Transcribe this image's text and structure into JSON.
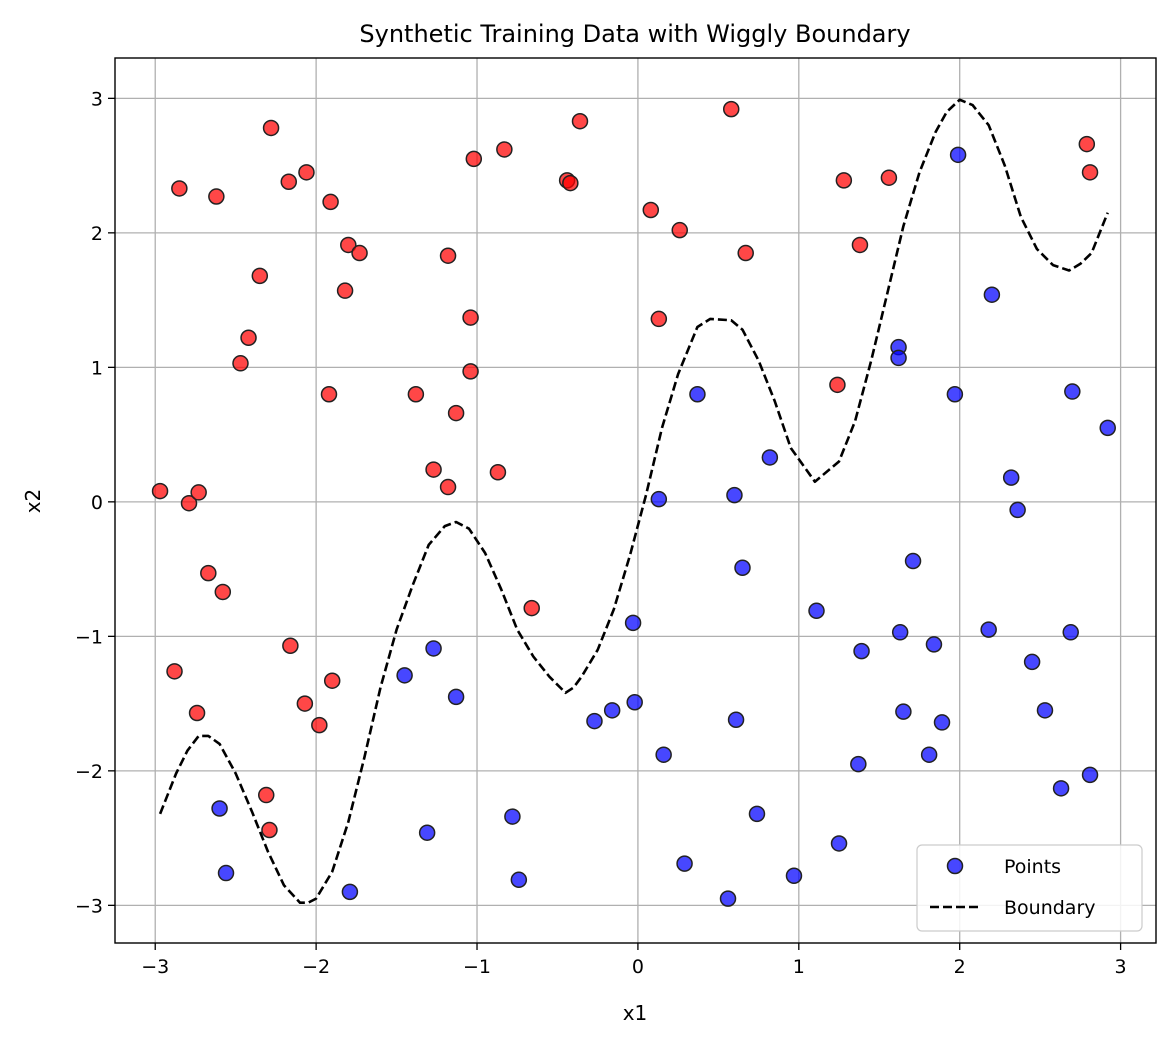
{
  "chart_data": {
    "type": "scatter",
    "title": "Synthetic Training Data with Wiggly Boundary",
    "xlabel": "x1",
    "ylabel": "x2",
    "xlim": [
      -3.25,
      3.22
    ],
    "ylim": [
      -3.28,
      3.3
    ],
    "xticks": [
      -3,
      -2,
      -1,
      0,
      1,
      2,
      3
    ],
    "yticks": [
      -3,
      -2,
      -1,
      0,
      1,
      2,
      3
    ],
    "xtick_labels": [
      "−3",
      "−2",
      "−1",
      "0",
      "1",
      "2",
      "3"
    ],
    "ytick_labels": [
      "−3",
      "−2",
      "−1",
      "0",
      "1",
      "2",
      "3"
    ],
    "grid": true,
    "legend_position": "lower-right",
    "legend": [
      {
        "label": "Points",
        "kind": "marker",
        "color": "#0000ff"
      },
      {
        "label": "Boundary",
        "kind": "dashed-line",
        "color": "#000000"
      }
    ],
    "colors": {
      "red": "#ff0000",
      "blue": "#0000ff",
      "boundary": "#000000",
      "edge": "#222222"
    },
    "series": [
      {
        "name": "Points",
        "type": "scatter",
        "points": [
          [
            -2.97,
            0.08,
            "red"
          ],
          [
            -2.85,
            2.33,
            "red"
          ],
          [
            -2.62,
            2.27,
            "red"
          ],
          [
            -2.28,
            2.78,
            "red"
          ],
          [
            -2.17,
            2.38,
            "red"
          ],
          [
            -2.06,
            2.45,
            "red"
          ],
          [
            -1.91,
            2.23,
            "red"
          ],
          [
            -1.8,
            1.91,
            "red"
          ],
          [
            -1.73,
            1.85,
            "red"
          ],
          [
            -1.82,
            1.57,
            "red"
          ],
          [
            -2.35,
            1.68,
            "red"
          ],
          [
            -2.42,
            1.22,
            "red"
          ],
          [
            -2.47,
            1.03,
            "red"
          ],
          [
            -1.92,
            0.8,
            "red"
          ],
          [
            -1.38,
            0.8,
            "red"
          ],
          [
            -1.27,
            0.24,
            "red"
          ],
          [
            -1.18,
            0.11,
            "red"
          ],
          [
            -1.13,
            0.66,
            "red"
          ],
          [
            -1.04,
            0.97,
            "red"
          ],
          [
            -1.04,
            1.37,
            "red"
          ],
          [
            -1.18,
            1.83,
            "red"
          ],
          [
            -1.02,
            2.55,
            "red"
          ],
          [
            -0.83,
            2.62,
            "red"
          ],
          [
            -0.44,
            2.39,
            "red"
          ],
          [
            -0.42,
            2.37,
            "red"
          ],
          [
            -0.36,
            2.83,
            "red"
          ],
          [
            -0.87,
            0.22,
            "red"
          ],
          [
            -0.66,
            -0.79,
            "red"
          ],
          [
            -2.79,
            -0.01,
            "red"
          ],
          [
            -2.73,
            0.07,
            "red"
          ],
          [
            -2.67,
            -0.53,
            "red"
          ],
          [
            -2.58,
            -0.67,
            "red"
          ],
          [
            -2.88,
            -1.26,
            "red"
          ],
          [
            -2.74,
            -1.57,
            "red"
          ],
          [
            -2.16,
            -1.07,
            "red"
          ],
          [
            -1.9,
            -1.33,
            "red"
          ],
          [
            -2.07,
            -1.5,
            "red"
          ],
          [
            -1.98,
            -1.66,
            "red"
          ],
          [
            -2.31,
            -2.18,
            "red"
          ],
          [
            -2.29,
            -2.44,
            "red"
          ],
          [
            0.08,
            2.17,
            "red"
          ],
          [
            0.26,
            2.02,
            "red"
          ],
          [
            0.58,
            2.92,
            "red"
          ],
          [
            0.67,
            1.85,
            "red"
          ],
          [
            0.13,
            1.36,
            "red"
          ],
          [
            1.28,
            2.39,
            "red"
          ],
          [
            1.38,
            1.91,
            "red"
          ],
          [
            1.56,
            2.41,
            "red"
          ],
          [
            1.24,
            0.87,
            "red"
          ],
          [
            2.79,
            2.66,
            "red"
          ],
          [
            2.81,
            2.45,
            "red"
          ],
          [
            1.99,
            2.58,
            "blue"
          ],
          [
            2.2,
            1.54,
            "blue"
          ],
          [
            1.62,
            1.15,
            "blue"
          ],
          [
            1.62,
            1.07,
            "blue"
          ],
          [
            1.97,
            0.8,
            "blue"
          ],
          [
            2.7,
            0.82,
            "blue"
          ],
          [
            2.92,
            0.55,
            "blue"
          ],
          [
            2.32,
            0.18,
            "blue"
          ],
          [
            2.36,
            -0.06,
            "blue"
          ],
          [
            1.71,
            -0.44,
            "blue"
          ],
          [
            0.37,
            0.8,
            "blue"
          ],
          [
            0.82,
            0.33,
            "blue"
          ],
          [
            0.13,
            0.02,
            "blue"
          ],
          [
            0.6,
            0.05,
            "blue"
          ],
          [
            0.65,
            -0.49,
            "blue"
          ],
          [
            1.11,
            -0.81,
            "blue"
          ],
          [
            -0.03,
            -0.9,
            "blue"
          ],
          [
            1.63,
            -0.97,
            "blue"
          ],
          [
            2.18,
            -0.95,
            "blue"
          ],
          [
            2.69,
            -0.97,
            "blue"
          ],
          [
            1.39,
            -1.11,
            "blue"
          ],
          [
            1.84,
            -1.06,
            "blue"
          ],
          [
            2.45,
            -1.19,
            "blue"
          ],
          [
            2.53,
            -1.55,
            "blue"
          ],
          [
            1.65,
            -1.56,
            "blue"
          ],
          [
            1.89,
            -1.64,
            "blue"
          ],
          [
            -1.27,
            -1.09,
            "blue"
          ],
          [
            -1.45,
            -1.29,
            "blue"
          ],
          [
            -1.13,
            -1.45,
            "blue"
          ],
          [
            -0.27,
            -1.63,
            "blue"
          ],
          [
            -0.16,
            -1.55,
            "blue"
          ],
          [
            -0.02,
            -1.49,
            "blue"
          ],
          [
            0.61,
            -1.62,
            "blue"
          ],
          [
            0.16,
            -1.88,
            "blue"
          ],
          [
            1.37,
            -1.95,
            "blue"
          ],
          [
            1.81,
            -1.88,
            "blue"
          ],
          [
            2.63,
            -2.13,
            "blue"
          ],
          [
            2.81,
            -2.03,
            "blue"
          ],
          [
            0.74,
            -2.32,
            "blue"
          ],
          [
            1.25,
            -2.54,
            "blue"
          ],
          [
            -0.78,
            -2.34,
            "blue"
          ],
          [
            -1.31,
            -2.46,
            "blue"
          ],
          [
            -2.6,
            -2.28,
            "blue"
          ],
          [
            -2.56,
            -2.76,
            "blue"
          ],
          [
            -1.79,
            -2.9,
            "blue"
          ],
          [
            -0.74,
            -2.81,
            "blue"
          ],
          [
            0.29,
            -2.69,
            "blue"
          ],
          [
            0.56,
            -2.95,
            "blue"
          ],
          [
            0.97,
            -2.78,
            "blue"
          ]
        ]
      },
      {
        "name": "Boundary",
        "type": "line",
        "style": "dashed",
        "x": [
          -2.97,
          -2.87,
          -2.8,
          -2.73,
          -2.67,
          -2.6,
          -2.5,
          -2.4,
          -2.3,
          -2.2,
          -2.1,
          -2.05,
          -2.0,
          -1.9,
          -1.8,
          -1.7,
          -1.6,
          -1.5,
          -1.4,
          -1.3,
          -1.2,
          -1.13,
          -1.05,
          -0.95,
          -0.85,
          -0.75,
          -0.65,
          -0.55,
          -0.45,
          -0.4,
          -0.35,
          -0.25,
          -0.15,
          -0.05,
          0.05,
          0.15,
          0.25,
          0.37,
          0.45,
          0.58,
          0.65,
          0.75,
          0.85,
          0.95,
          1.1,
          1.25,
          1.35,
          1.45,
          1.55,
          1.65,
          1.75,
          1.85,
          1.92,
          2.0,
          2.08,
          2.18,
          2.28,
          2.38,
          2.48,
          2.58,
          2.68,
          2.75,
          2.82,
          2.92
        ],
        "y": [
          -2.32,
          -2.02,
          -1.85,
          -1.74,
          -1.74,
          -1.8,
          -2.02,
          -2.3,
          -2.6,
          -2.85,
          -2.98,
          -2.98,
          -2.95,
          -2.75,
          -2.38,
          -1.9,
          -1.38,
          -0.95,
          -0.62,
          -0.32,
          -0.18,
          -0.15,
          -0.2,
          -0.38,
          -0.65,
          -0.95,
          -1.15,
          -1.3,
          -1.42,
          -1.38,
          -1.3,
          -1.1,
          -0.8,
          -0.4,
          0.05,
          0.55,
          0.95,
          1.3,
          1.36,
          1.35,
          1.28,
          1.05,
          0.75,
          0.4,
          0.15,
          0.3,
          0.6,
          1.05,
          1.55,
          2.05,
          2.45,
          2.75,
          2.9,
          2.99,
          2.95,
          2.8,
          2.5,
          2.12,
          1.88,
          1.76,
          1.72,
          1.77,
          1.85,
          2.15
        ]
      }
    ]
  }
}
